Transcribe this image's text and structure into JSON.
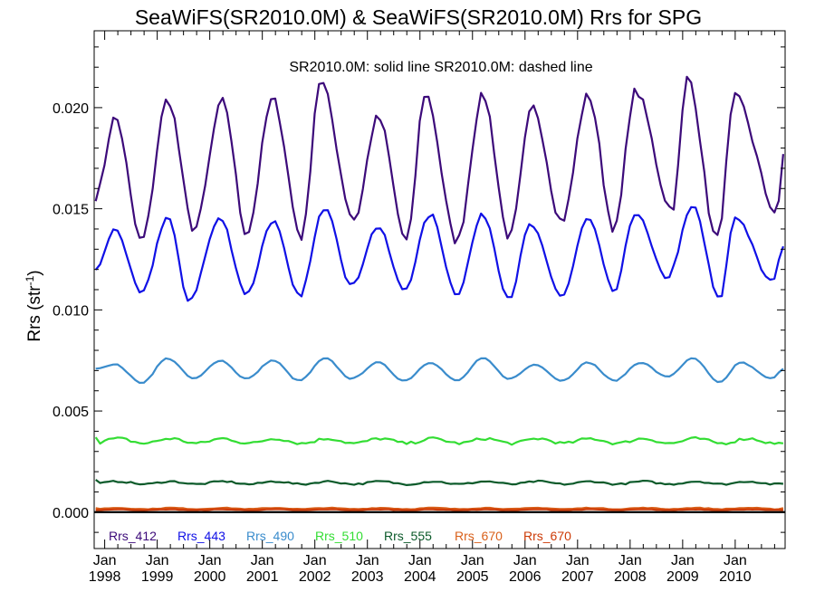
{
  "chart_data": {
    "type": "line",
    "title": "SeaWiFS(SR2010.0M) & SeaWiFS(SR2010.0M)  Rrs for SPG",
    "annotation": "SR2010.0M: solid line   SR2010.0M: dashed line",
    "ylabel_main": "Rrs (str",
    "ylabel_sup": "-1",
    "ylabel_close": ")",
    "ylim": [
      -0.0018,
      0.0238
    ],
    "x_range": [
      1997.8,
      2010.95
    ],
    "yticks": [
      "0.000",
      "0.005",
      "0.010",
      "0.015",
      "0.020"
    ],
    "ytick_values": [
      0.0,
      0.005,
      0.01,
      0.015,
      0.02
    ],
    "xtick_month": "Jan",
    "xtick_years": [
      "1998",
      "1999",
      "2000",
      "2001",
      "2002",
      "2003",
      "2004",
      "2005",
      "2006",
      "2007",
      "2008",
      "2009",
      "2010"
    ],
    "zero_line": true,
    "grid": false,
    "legend_position": "bottom-left inside",
    "series": [
      {
        "name": "Rrs_412",
        "color": "#3c0a7a",
        "mean": 0.0173,
        "amp": 0.0034,
        "phase": 0.3,
        "noise": 0.00045,
        "breaks": [
          [
            1998.2,
            0.0195
          ],
          [
            1999.2,
            0.0204
          ],
          [
            2000.25,
            0.0203
          ],
          [
            2001.2,
            0.0204
          ],
          [
            2002.1,
            0.0213
          ],
          [
            2003.2,
            0.0195
          ],
          [
            2004.1,
            0.0207
          ],
          [
            2005.2,
            0.0206
          ],
          [
            2006.15,
            0.02
          ],
          [
            2007.2,
            0.0206
          ],
          [
            2008.1,
            0.0208
          ],
          [
            2009.1,
            0.0215
          ],
          [
            2010.0,
            0.0205
          ]
        ],
        "troughs": [
          [
            1998.7,
            0.0134
          ],
          [
            1999.7,
            0.014
          ],
          [
            2000.7,
            0.0138
          ],
          [
            2001.75,
            0.0136
          ],
          [
            2002.75,
            0.0145
          ],
          [
            2003.75,
            0.0134
          ],
          [
            2004.7,
            0.0134
          ],
          [
            2005.7,
            0.0136
          ],
          [
            2006.7,
            0.0144
          ],
          [
            2007.7,
            0.014
          ],
          [
            2008.8,
            0.015
          ],
          [
            2009.65,
            0.0135
          ],
          [
            2010.8,
            0.0148
          ]
        ],
        "start": 0.0156,
        "end": 0.0177
      },
      {
        "name": "Rrs_443",
        "color": "#1010e6",
        "breaks": [
          [
            1998.2,
            0.014
          ],
          [
            1999.2,
            0.0146
          ],
          [
            2000.2,
            0.0145
          ],
          [
            2001.2,
            0.0144
          ],
          [
            2002.2,
            0.0151
          ],
          [
            2003.2,
            0.0141
          ],
          [
            2004.2,
            0.0147
          ],
          [
            2005.2,
            0.0147
          ],
          [
            2006.1,
            0.0142
          ],
          [
            2007.2,
            0.0145
          ],
          [
            2008.1,
            0.0148
          ],
          [
            2009.2,
            0.0151
          ],
          [
            2010.0,
            0.0146
          ]
        ],
        "troughs": [
          [
            1998.7,
            0.0108
          ],
          [
            1999.6,
            0.0105
          ],
          [
            2000.7,
            0.0108
          ],
          [
            2001.7,
            0.0107
          ],
          [
            2002.7,
            0.0112
          ],
          [
            2003.7,
            0.011
          ],
          [
            2004.7,
            0.0108
          ],
          [
            2005.7,
            0.0106
          ],
          [
            2006.7,
            0.0107
          ],
          [
            2007.7,
            0.0109
          ],
          [
            2008.7,
            0.0116
          ],
          [
            2009.7,
            0.0105
          ],
          [
            2010.7,
            0.0114
          ]
        ],
        "start": 0.012,
        "end": 0.0131
      },
      {
        "name": "Rrs_490",
        "color": "#3a8ccc",
        "breaks": [
          [
            1998.2,
            0.0073
          ],
          [
            1999.2,
            0.0076
          ],
          [
            2000.2,
            0.0075
          ],
          [
            2001.2,
            0.0075
          ],
          [
            2002.2,
            0.0076
          ],
          [
            2003.2,
            0.0074
          ],
          [
            2004.2,
            0.0074
          ],
          [
            2005.2,
            0.0076
          ],
          [
            2006.2,
            0.0073
          ],
          [
            2007.2,
            0.0074
          ],
          [
            2008.2,
            0.0074
          ],
          [
            2009.2,
            0.0076
          ],
          [
            2010.1,
            0.0074
          ]
        ],
        "troughs": [
          [
            1998.7,
            0.0064
          ],
          [
            1999.7,
            0.0066
          ],
          [
            2000.7,
            0.0066
          ],
          [
            2001.7,
            0.0065
          ],
          [
            2002.7,
            0.0066
          ],
          [
            2003.7,
            0.0065
          ],
          [
            2004.7,
            0.0065
          ],
          [
            2005.7,
            0.0066
          ],
          [
            2006.7,
            0.0065
          ],
          [
            2007.7,
            0.0065
          ],
          [
            2008.7,
            0.0067
          ],
          [
            2009.7,
            0.0064
          ],
          [
            2010.7,
            0.0066
          ]
        ],
        "start": 0.0071,
        "end": 0.0071
      },
      {
        "name": "Rrs_510",
        "color": "#33dd33",
        "level": 0.00352,
        "wobble": 0.00012,
        "start": 0.0037,
        "end": 0.0034
      },
      {
        "name": "Rrs_555",
        "color": "#0b5a2a",
        "level": 0.00145,
        "wobble": 7e-05,
        "start": 0.0016,
        "end": 0.0014
      },
      {
        "name": "Rrs_670",
        "color": "#d9601a",
        "level": 0.00018,
        "wobble": 3e-05,
        "start": 0.0002,
        "end": 0.0002
      },
      {
        "name": "Rrs_670",
        "color": "#cc3a06",
        "level": 0.00012,
        "wobble": 2e-05,
        "start": 0.0001,
        "end": 0.0001
      }
    ]
  }
}
